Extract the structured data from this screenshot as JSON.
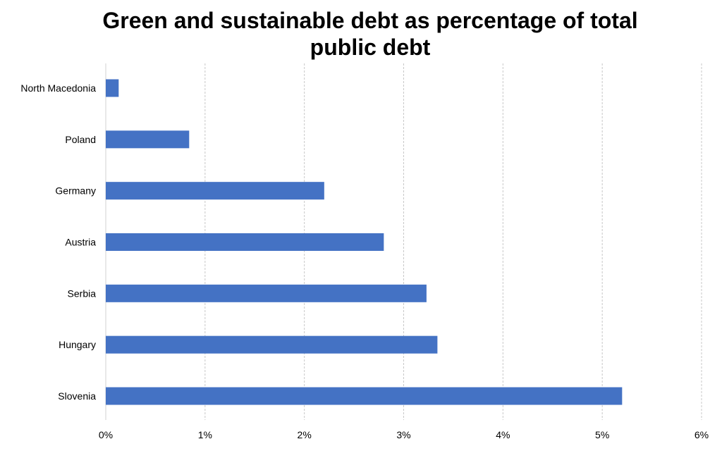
{
  "chart_data": {
    "type": "bar",
    "orientation": "horizontal",
    "title": [
      "Green and sustainable debt as percentage of total",
      "public debt"
    ],
    "xlabel": "",
    "ylabel": "",
    "categories": [
      "North Macedonia",
      "Poland",
      "Germany",
      "Austria",
      "Serbia",
      "Hungary",
      "Slovenia"
    ],
    "values": [
      0.13,
      0.84,
      2.2,
      2.8,
      3.23,
      3.34,
      5.2
    ],
    "xlim": [
      0,
      6
    ],
    "xticks": [
      0,
      1,
      2,
      3,
      4,
      5,
      6
    ],
    "xtick_labels": [
      "0%",
      "1%",
      "2%",
      "3%",
      "4%",
      "5%",
      "6%"
    ],
    "grid": "vertical dashed",
    "legend": "none",
    "bar_color": "#4472C4"
  }
}
